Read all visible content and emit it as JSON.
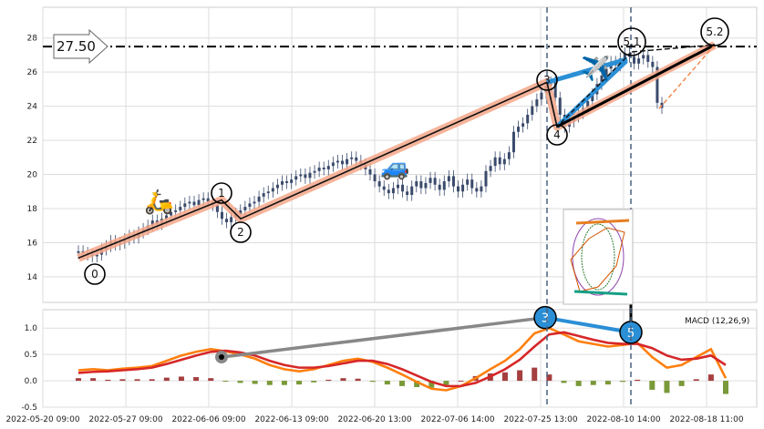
{
  "chart_data": [
    {
      "type": "candlestick",
      "title": "",
      "ylim": [
        12.5,
        29.8
      ],
      "yticks": [
        14,
        16,
        18,
        20,
        22,
        24,
        26,
        28
      ],
      "grid": true,
      "price_line": {
        "value": 27.5,
        "label": "27.50"
      },
      "x_tick_labels": [
        "2022-05-20 09:00",
        "2022-05-27 09:00",
        "2022-06-06 09:00",
        "2022-06-13 09:00",
        "2022-06-20 13:00",
        "2022-07-06 14:00",
        "2022-07-25 13:00",
        "2022-08-10 14:00",
        "2022-08-18 11:00"
      ],
      "close_series": [
        15.5,
        15.4,
        15.3,
        15.2,
        15.3,
        15.6,
        15.8,
        16.1,
        15.9,
        16.0,
        16.2,
        16.4,
        16.3,
        16.6,
        16.8,
        17.0,
        17.3,
        17.1,
        17.4,
        17.6,
        17.8,
        17.9,
        18.1,
        18.3,
        18.4,
        18.2,
        18.5,
        18.6,
        18.4,
        18.2,
        17.8,
        17.4,
        17.2,
        17.5,
        17.7,
        17.9,
        18.1,
        18.3,
        18.4,
        18.7,
        18.9,
        19.0,
        19.2,
        19.4,
        19.6,
        19.5,
        19.7,
        19.9,
        20.0,
        19.8,
        20.1,
        20.2,
        20.4,
        20.3,
        20.5,
        20.7,
        20.8,
        20.6,
        20.9,
        21.0,
        20.8,
        20.6,
        20.3,
        20.0,
        19.6,
        19.3,
        19.1,
        18.9,
        19.2,
        19.4,
        19.0,
        18.8,
        19.3,
        19.6,
        19.2,
        19.5,
        19.8,
        19.4,
        19.1,
        19.6,
        19.9,
        19.3,
        19.0,
        19.4,
        19.7,
        19.2,
        19.0,
        19.3,
        20.2,
        20.5,
        21.0,
        20.6,
        20.9,
        21.3,
        22.5,
        22.8,
        23.0,
        23.5,
        24.0,
        24.4,
        24.8,
        25.2,
        25.4,
        24.5,
        23.5,
        22.8,
        23.1,
        23.4,
        23.6,
        23.9,
        24.3,
        24.7,
        25.3,
        25.8,
        26.2,
        26.6,
        26.4,
        26.8,
        27.1,
        26.9,
        26.5,
        26.8,
        27.0,
        26.6,
        26.3,
        24.2,
        23.9
      ],
      "wave_points": [
        {
          "label": "0",
          "x": "2022-05-23",
          "y": 15.2
        },
        {
          "label": "1",
          "x": "2022-06-05",
          "y": 18.5
        },
        {
          "label": "2",
          "x": "2022-06-08",
          "y": 17.4
        },
        {
          "label": "3",
          "x": "2022-07-25",
          "y": 25.4
        },
        {
          "label": "4",
          "x": "2022-07-27",
          "y": 22.8
        },
        {
          "label": "5.1",
          "x": "2022-08-10",
          "y": 27.4
        },
        {
          "label": "5.2",
          "x": "2022-08-22",
          "y": 27.6
        }
      ]
    },
    {
      "type": "line",
      "title": "MACD (12,26,9)",
      "ylim": [
        -0.5,
        1.35
      ],
      "yticks": [
        -0.5,
        0.0,
        0.5,
        1.0
      ],
      "grid": true,
      "series": [
        {
          "name": "",
          "color": "#ff7f0e",
          "values": [
            0.2,
            0.22,
            0.2,
            0.23,
            0.25,
            0.28,
            0.38,
            0.48,
            0.55,
            0.6,
            0.56,
            0.5,
            0.42,
            0.3,
            0.22,
            0.18,
            0.22,
            0.3,
            0.38,
            0.42,
            0.36,
            0.25,
            0.12,
            -0.02,
            -0.15,
            -0.18,
            -0.1,
            0.05,
            0.22,
            0.38,
            0.6,
            0.9,
            1.0,
            0.88,
            0.75,
            0.7,
            0.65,
            0.68,
            0.72,
            0.45,
            0.25,
            0.3,
            0.45,
            0.6,
            0.05
          ]
        },
        {
          "name": "",
          "color": "#d62728",
          "values": [
            0.15,
            0.17,
            0.18,
            0.2,
            0.22,
            0.25,
            0.32,
            0.4,
            0.48,
            0.55,
            0.57,
            0.54,
            0.48,
            0.38,
            0.3,
            0.25,
            0.25,
            0.28,
            0.33,
            0.38,
            0.38,
            0.32,
            0.22,
            0.1,
            -0.02,
            -0.1,
            -0.1,
            -0.04,
            0.08,
            0.22,
            0.4,
            0.65,
            0.88,
            0.92,
            0.85,
            0.78,
            0.72,
            0.7,
            0.7,
            0.62,
            0.48,
            0.4,
            0.42,
            0.48,
            0.3
          ]
        },
        {
          "name": "",
          "color": "#8b1a1a",
          "values": [
            0.05,
            0.05,
            0.02,
            0.03,
            0.03,
            0.03,
            0.06,
            0.08,
            0.07,
            0.05,
            -0.01,
            -0.04,
            -0.06,
            -0.08,
            -0.08,
            -0.07,
            -0.03,
            0.02,
            0.05,
            0.04,
            -0.02,
            -0.07,
            -0.1,
            -0.12,
            -0.13,
            -0.08,
            0.0,
            0.09,
            0.14,
            0.16,
            0.2,
            0.25,
            0.12,
            -0.04,
            -0.1,
            -0.08,
            -0.07,
            -0.02,
            0.02,
            -0.17,
            -0.23,
            -0.1,
            0.03,
            0.12,
            -0.25
          ]
        }
      ],
      "wave_points": [
        {
          "label": "3",
          "x": "2022-07-25",
          "y": 1.2
        },
        {
          "label": "5",
          "x": "2022-08-12",
          "y": 0.92
        }
      ]
    }
  ]
}
